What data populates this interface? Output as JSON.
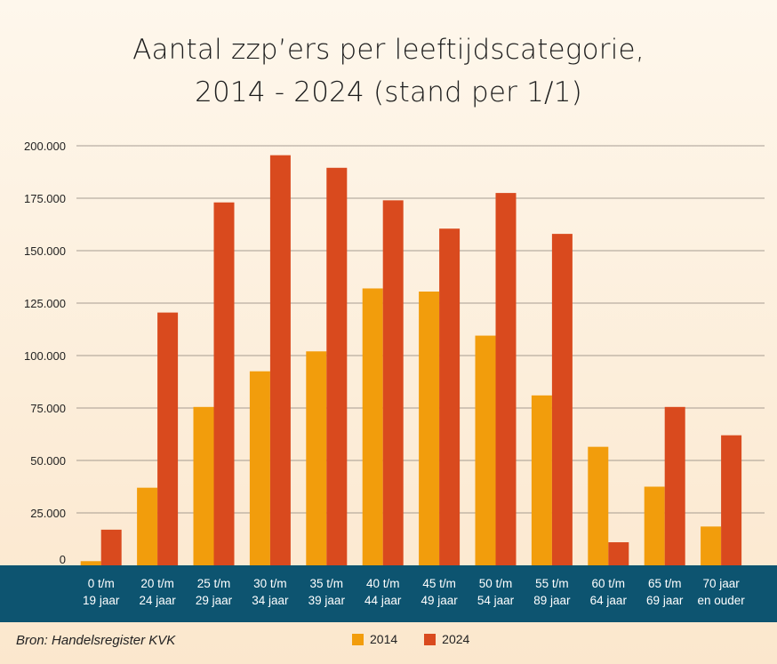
{
  "chart_data": {
    "type": "bar",
    "title_line1": "Aantal zzp’ers per leeftijdscategorie,",
    "title_line2": "2014 - 2024 (stand per 1/1)",
    "categories": [
      [
        "0 t/m",
        "19 jaar"
      ],
      [
        "20 t/m",
        "24 jaar"
      ],
      [
        "25 t/m",
        "29 jaar"
      ],
      [
        "30 t/m",
        "34 jaar"
      ],
      [
        "35 t/m",
        "39 jaar"
      ],
      [
        "40 t/m",
        "44 jaar"
      ],
      [
        "45 t/m",
        "49 jaar"
      ],
      [
        "50 t/m",
        "54 jaar"
      ],
      [
        "55 t/m",
        "89 jaar"
      ],
      [
        "60 t/m",
        "64 jaar"
      ],
      [
        "65 t/m",
        "69 jaar"
      ],
      [
        "70 jaar",
        "en ouder"
      ]
    ],
    "series": [
      {
        "name": "2014",
        "color": "#f29d0c",
        "values": [
          2000,
          37000,
          75500,
          92500,
          102000,
          132000,
          130500,
          109500,
          81000,
          56500,
          37500,
          18500
        ]
      },
      {
        "name": "2024",
        "color": "#d94a1e",
        "values": [
          17000,
          120500,
          173000,
          195500,
          189500,
          174000,
          160500,
          177500,
          158000,
          11000,
          75500,
          62000
        ]
      }
    ],
    "ylim": [
      0,
      200000
    ],
    "yticks": [
      0,
      25000,
      50000,
      75000,
      100000,
      125000,
      150000,
      175000,
      200000
    ],
    "ytick_labels": [
      "0",
      "25.000",
      "50.000",
      "75.000",
      "100.000",
      "125.000",
      "150.000",
      "175.000",
      "200.000"
    ],
    "grid": true,
    "legend_position": "bottom",
    "axis_band_color": "#0d5470"
  },
  "source": "Bron: Handelsregister KVK"
}
